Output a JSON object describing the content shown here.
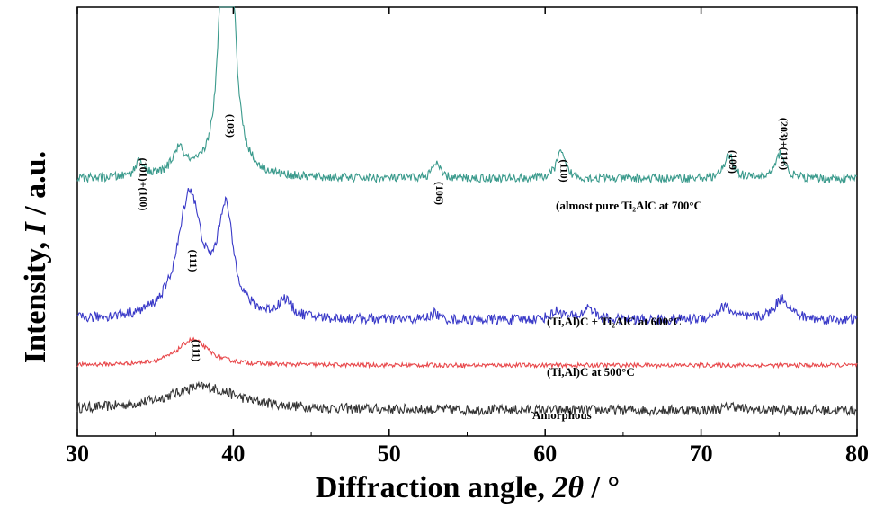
{
  "chart_data": {
    "type": "line",
    "xlabel_prefix": "Diffraction angle, ",
    "xlabel_symbol": "2θ",
    "xlabel_suffix": " / °",
    "ylabel_prefix": "Intensity, ",
    "ylabel_symbol": "I",
    "ylabel_suffix": " / a.u.",
    "xlim": [
      30,
      80
    ],
    "x_ticks": [
      "30",
      "40",
      "50",
      "60",
      "70",
      "80"
    ],
    "y_ticks_shown": false,
    "grid": false,
    "series": [
      {
        "name": "Amorphous",
        "color": "#333333",
        "baseline": 0.06,
        "peaks": [
          [
            38.0,
            0.055,
            2.8
          ],
          [
            72.0,
            0.01,
            0.5
          ]
        ],
        "noise": 0.012
      },
      {
        "name": "(Ti,Al)C  at 500°C",
        "color": "#e8474a",
        "baseline": 0.165,
        "peaks": [
          [
            37.4,
            0.06,
            1.2
          ]
        ],
        "noise": 0.005
      },
      {
        "name": "(Ti,Al)C + Ti₂AlC at 600°C",
        "color": "#3a3ac8",
        "baseline": 0.27,
        "peaks": [
          [
            37.2,
            0.29,
            0.9
          ],
          [
            39.5,
            0.24,
            0.6
          ],
          [
            43.3,
            0.04,
            0.5
          ],
          [
            52.9,
            0.015,
            0.3
          ],
          [
            60.8,
            0.02,
            0.5
          ],
          [
            62.8,
            0.03,
            0.4
          ],
          [
            71.5,
            0.03,
            0.6
          ],
          [
            75.2,
            0.05,
            0.6
          ]
        ],
        "noise": 0.012
      },
      {
        "name": "(almost pure Ti₂AlC at 700°C",
        "color": "#3a9a8c",
        "baseline": 0.6,
        "peaks": [
          [
            34.0,
            0.04,
            0.3
          ],
          [
            36.5,
            0.06,
            0.5
          ],
          [
            39.6,
            1.2,
            0.35
          ],
          [
            53.0,
            0.035,
            0.3
          ],
          [
            61.0,
            0.06,
            0.35
          ],
          [
            71.8,
            0.055,
            0.35
          ],
          [
            75.1,
            0.06,
            0.35
          ]
        ],
        "noise": 0.01
      }
    ],
    "peak_labels": [
      {
        "text": "(101)+(100)",
        "x": 34.0
      },
      {
        "text": "(103)",
        "x": 39.6
      },
      {
        "text": "(106)",
        "x": 53.0
      },
      {
        "text": "(110)",
        "x": 61.0
      },
      {
        "text": "(109)",
        "x": 71.8
      },
      {
        "text": "(203)+(116)",
        "x": 75.1
      }
    ],
    "mark_labels": [
      {
        "text": "(111)",
        "x": 37.2,
        "series": 2
      },
      {
        "text": "(111)",
        "x": 37.4,
        "series": 1
      }
    ]
  }
}
